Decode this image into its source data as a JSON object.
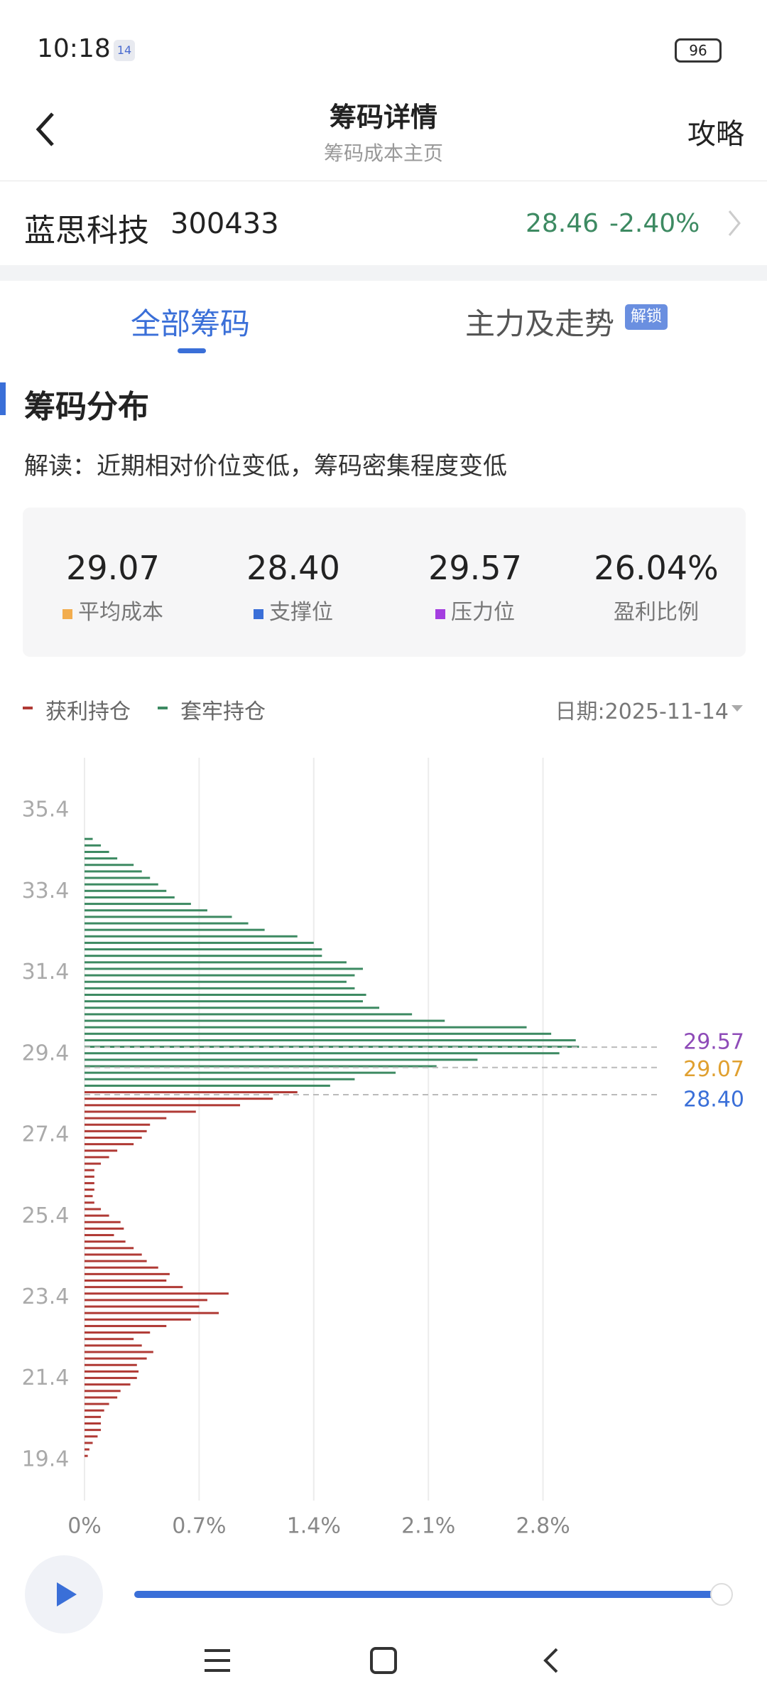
{
  "status_bar": {
    "time": "10:18",
    "badge": "14",
    "battery": "96"
  },
  "header": {
    "title": "筹码详情",
    "subtitle": "筹码成本主页",
    "action": "攻略"
  },
  "stock": {
    "name": "蓝思科技",
    "code": "300433",
    "price": "28.46",
    "change": "-2.40%"
  },
  "tabs": [
    {
      "label": "全部筹码"
    },
    {
      "label": "主力及走势",
      "badge": "解锁"
    }
  ],
  "section": {
    "title": "筹码分布",
    "note": "解读：近期相对价位变低，筹码密集程度变低"
  },
  "stats": [
    {
      "value": "29.07",
      "label": "平均成本",
      "color": "#f2ad4e"
    },
    {
      "value": "28.40",
      "label": "支撑位",
      "color": "#3a6fd8"
    },
    {
      "value": "29.57",
      "label": "压力位",
      "color": "#a43ee0"
    },
    {
      "value": "26.04%",
      "label": "盈利比例"
    }
  ],
  "date": "日期:2025-11-14",
  "chart_data": {
    "type": "bar",
    "orientation": "horizontal",
    "series": [
      {
        "name": "获利持仓",
        "color": "#b03a35",
        "y": [
          28.46,
          28.3,
          28.14,
          27.98,
          27.82,
          27.66,
          27.5,
          27.34,
          27.18,
          27.02,
          26.86,
          26.7,
          26.54,
          26.38,
          26.22,
          26.06,
          25.9,
          25.74,
          25.58,
          25.42,
          25.26,
          25.1,
          24.94,
          24.78,
          24.62,
          24.46,
          24.3,
          24.14,
          23.98,
          23.82,
          23.66,
          23.5,
          23.34,
          23.18,
          23.02,
          22.86,
          22.7,
          22.54,
          22.38,
          22.22,
          22.06,
          21.9,
          21.74,
          21.58,
          21.42,
          21.26,
          21.1,
          20.94,
          20.78,
          20.62,
          20.46,
          20.3,
          20.14,
          19.98,
          19.82,
          19.66,
          19.5
        ],
        "values": [
          1.3,
          1.15,
          0.95,
          0.68,
          0.5,
          0.4,
          0.38,
          0.35,
          0.3,
          0.2,
          0.15,
          0.1,
          0.06,
          0.06,
          0.06,
          0.06,
          0.05,
          0.06,
          0.1,
          0.15,
          0.22,
          0.24,
          0.18,
          0.25,
          0.3,
          0.35,
          0.38,
          0.45,
          0.52,
          0.5,
          0.6,
          0.88,
          0.75,
          0.7,
          0.82,
          0.65,
          0.5,
          0.4,
          0.3,
          0.35,
          0.42,
          0.38,
          0.32,
          0.33,
          0.32,
          0.28,
          0.22,
          0.2,
          0.15,
          0.12,
          0.1,
          0.1,
          0.1,
          0.08,
          0.05,
          0.03,
          0.02
        ]
      },
      {
        "name": "套牢持仓",
        "color": "#3d8a62",
        "y": [
          34.7,
          34.54,
          34.38,
          34.22,
          34.06,
          33.9,
          33.74,
          33.58,
          33.42,
          33.26,
          33.1,
          32.94,
          32.78,
          32.62,
          32.46,
          32.3,
          32.14,
          31.98,
          31.82,
          31.66,
          31.5,
          31.34,
          31.18,
          31.02,
          30.86,
          30.7,
          30.54,
          30.38,
          30.22,
          30.06,
          29.9,
          29.74,
          29.58,
          29.42,
          29.26,
          29.1,
          28.94,
          28.78,
          28.62
        ],
        "values": [
          0.05,
          0.1,
          0.15,
          0.2,
          0.3,
          0.35,
          0.4,
          0.45,
          0.5,
          0.55,
          0.65,
          0.75,
          0.9,
          1.0,
          1.1,
          1.3,
          1.4,
          1.45,
          1.45,
          1.6,
          1.7,
          1.65,
          1.6,
          1.65,
          1.72,
          1.7,
          1.8,
          2.0,
          2.2,
          2.7,
          2.85,
          3.0,
          3.02,
          2.9,
          2.4,
          2.15,
          1.9,
          1.65,
          1.5
        ]
      }
    ],
    "xlim": [
      0,
      3.5
    ],
    "xticks": [
      {
        "value": 0,
        "label": "0%"
      },
      {
        "value": 0.7,
        "label": "0.7%"
      },
      {
        "value": 1.4,
        "label": "1.4%"
      },
      {
        "value": 2.1,
        "label": "2.1%"
      },
      {
        "value": 2.8,
        "label": "2.8%"
      }
    ],
    "ylim": [
      18.4,
      36.7
    ],
    "yticks": [
      19.4,
      21.4,
      23.4,
      25.4,
      27.4,
      29.4,
      31.4,
      33.4,
      35.4
    ],
    "grid": true,
    "reference_lines": [
      {
        "value": 29.57,
        "label": "29.57",
        "color": "#8e4bb8"
      },
      {
        "value": 29.07,
        "label": "29.07",
        "color": "#e0a030"
      },
      {
        "value": 28.4,
        "label": "28.40",
        "color": "#3a6fd8"
      }
    ]
  }
}
